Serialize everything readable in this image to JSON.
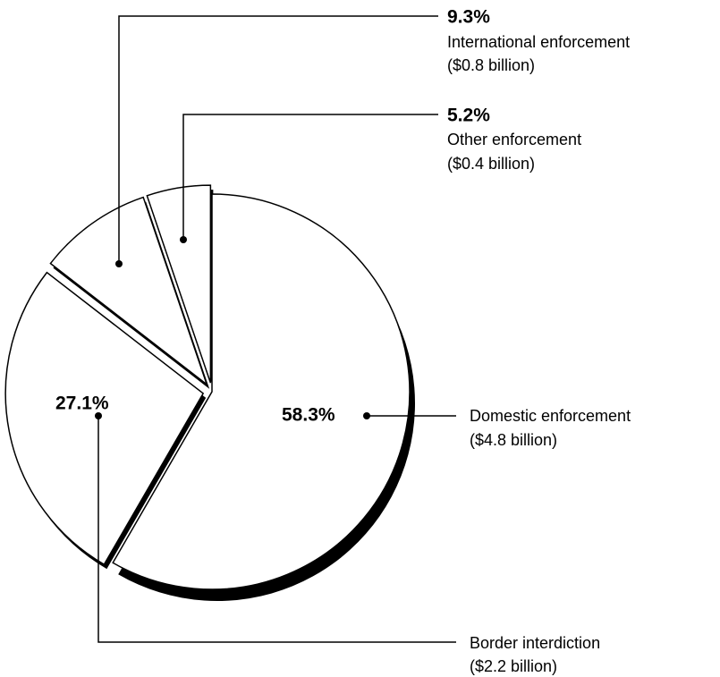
{
  "chart_data": {
    "type": "pie",
    "categories": [
      "Domestic enforcement",
      "Border interdiction",
      "International enforcement",
      "Other enforcement"
    ],
    "values": [
      58.3,
      27.1,
      9.3,
      5.2
    ],
    "value_labels": [
      "58.3%",
      "27.1%",
      "9.3%",
      "5.2%"
    ],
    "amount_labels": [
      "($4.8 billion)",
      "($2.2 billion)",
      "($0.8 billion)",
      "($0.4 billion)"
    ],
    "color": "#ffffff"
  }
}
